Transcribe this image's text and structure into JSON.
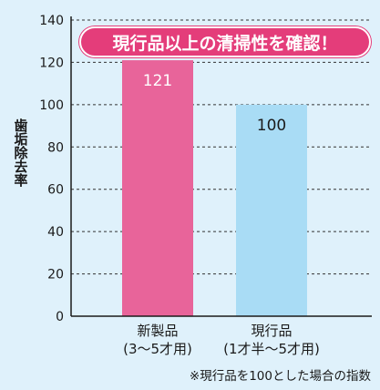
{
  "chart_data": {
    "type": "bar",
    "title": "現行品以上の清掃性を確認！",
    "ylabel": "歯垢除去率",
    "ylim": [
      0,
      140
    ],
    "yticks": [
      0,
      20,
      40,
      60,
      80,
      100,
      120,
      140
    ],
    "grid": true,
    "categories": [
      {
        "line1": "新製品",
        "line2": "(3〜5才用)"
      },
      {
        "line1": "現行品",
        "line2": "(1才半〜5才用)"
      }
    ],
    "values": [
      121,
      100
    ],
    "value_labels": [
      "121",
      "100"
    ],
    "bar_colors": [
      "#e8649a",
      "#a9dcf5"
    ],
    "value_label_colors": [
      "#ffffff",
      "#1a1a1a"
    ],
    "note": "※現行品を100とした場合の指数"
  }
}
